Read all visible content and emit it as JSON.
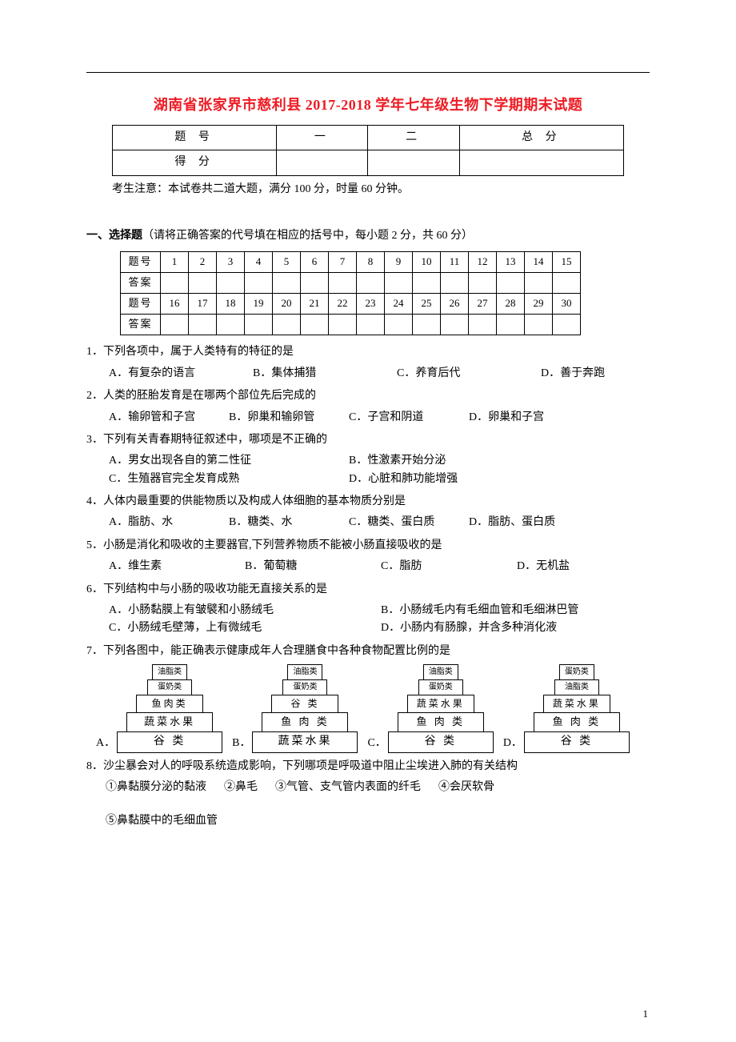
{
  "title": "湖南省张家界市慈利县 2017-2018 学年七年级生物下学期期末试题",
  "score_table": {
    "headers": [
      "题 号",
      "一",
      "二",
      "总 分"
    ],
    "row_label": "得 分"
  },
  "note": "考生注意：本试卷共二道大题，满分 100 分，时量 60 分钟。",
  "section1": {
    "label_bold": "一、选择题",
    "label_rest": "（请将正确答案的代号填在相应的括号中，每小题 2 分，共 60 分）"
  },
  "answer_table": {
    "row_labels": [
      "题号",
      "答案",
      "题号",
      "答案"
    ],
    "nums1": [
      "1",
      "2",
      "3",
      "4",
      "5",
      "6",
      "7",
      "8",
      "9",
      "10",
      "11",
      "12",
      "13",
      "14",
      "15"
    ],
    "nums2": [
      "16",
      "17",
      "18",
      "19",
      "20",
      "21",
      "22",
      "23",
      "24",
      "25",
      "26",
      "27",
      "28",
      "29",
      "30"
    ]
  },
  "questions": [
    {
      "num": "1．",
      "stem": "下列各项中，属于人类特有的特征的是",
      "layout": "row4",
      "choices": [
        "A．有复杂的语言",
        "B．集体捕猎",
        "C．养育后代",
        "D．善于奔跑"
      ]
    },
    {
      "num": "2．",
      "stem": "人类的胚胎发育是在哪两个部位先后完成的",
      "layout": "row4b",
      "choices": [
        "A．输卵管和子宫",
        "B．卵巢和输卵管",
        "C．子宫和阴道",
        "D．卵巢和子宫"
      ]
    },
    {
      "num": "3．",
      "stem": "下列有关青春期特征叙述中，哪项是不正确的",
      "layout": "row2",
      "choices": [
        "A．男女出现各自的第二性征",
        "B．性激素开始分泌",
        "C．生殖器官完全发育成熟",
        "D．心脏和肺功能增强"
      ]
    },
    {
      "num": "4．",
      "stem": "人体内最重要的供能物质以及构成人体细胞的基本物质分别是",
      "layout": "row4b",
      "choices": [
        "A．脂肪、水",
        "B．糖类、水",
        "C．糖类、蛋白质",
        "D．脂肪、蛋白质"
      ]
    },
    {
      "num": "5．",
      "stem": "小肠是消化和吸收的主要器官,下列营养物质不能被小肠直接吸收的是",
      "layout": "row4",
      "choices": [
        "A．维生素",
        "B．葡萄糖",
        "C．脂肪",
        "D．无机盐"
      ]
    },
    {
      "num": "6．",
      "stem": "下列结构中与小肠的吸收功能无直接关系的是",
      "layout": "row2wide",
      "choices": [
        "A．小肠黏膜上有皱襞和小肠绒毛",
        "B．小肠绒毛内有毛细血管和毛细淋巴管",
        "C．小肠绒毛壁薄，上有微绒毛",
        "D．小肠内有肠腺，并含多种消化液"
      ]
    },
    {
      "num": "7．",
      "stem": "下列各图中，能正确表示健康成年人合理膳食中各种食物配置比例的是"
    }
  ],
  "pyramids": [
    {
      "label": "A．",
      "rows": [
        "油脂类",
        "蛋奶类",
        "鱼肉类",
        "蔬菜水果",
        "谷    类"
      ]
    },
    {
      "label": "B．",
      "rows": [
        "油脂类",
        "蛋奶类",
        "谷    类",
        "鱼 肉 类",
        "蔬菜水果"
      ]
    },
    {
      "label": "C．",
      "rows": [
        "油脂类",
        "蛋奶类",
        "蔬菜水果",
        "鱼 肉 类",
        "谷    类"
      ]
    },
    {
      "label": "D．",
      "rows": [
        "蛋奶类",
        "油脂类",
        "蔬菜水果",
        "鱼 肉 类",
        "谷    类"
      ]
    }
  ],
  "pyramid_widths": [
    44,
    56,
    84,
    108,
    132
  ],
  "pyramid_fontsizes": [
    10,
    10,
    12,
    13,
    14
  ],
  "q8": {
    "num": "8．",
    "stem": "沙尘暴会对人的呼吸系统造成影响，下列哪项是呼吸道中阻止尘埃进入肺的有关结构",
    "items": [
      "①鼻黏膜分泌的黏液",
      "②鼻毛",
      "③气管、支气管内表面的纤毛",
      "④会厌软骨"
    ],
    "item2": "⑤鼻黏膜中的毛细血管"
  },
  "page_num": "1",
  "colors": {
    "title": "#ed1c24",
    "text": "#000000",
    "border": "#000000"
  }
}
